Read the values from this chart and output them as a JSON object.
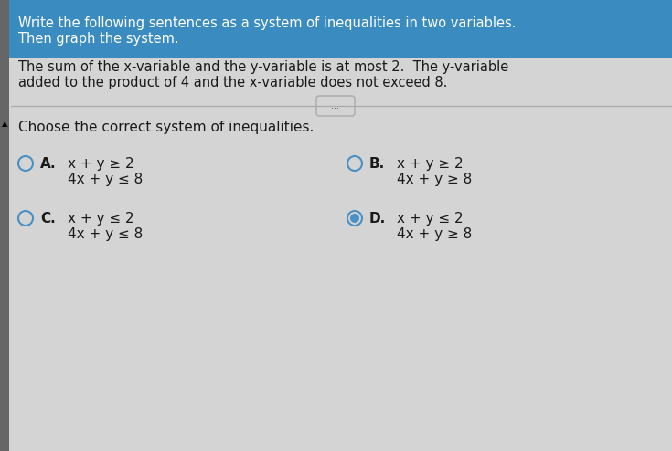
{
  "bg_top": "#3a8bbf",
  "bg_main": "#d4d4d4",
  "title_line1": "Write the following sentences as a system of inequalities in two variables.",
  "title_line2": "Then graph the system.",
  "body_line1": "The sum of the x-variable and the y-variable is at most 2.  The y-variable",
  "body_line2": "added to the product of 4 and the x-variable does not exceed 8.",
  "divider_label": "...",
  "choose_text": "Choose the correct system of inequalities.",
  "option_A_label": "A.",
  "option_A_line1": "x + y ≥ 2",
  "option_A_line2": "4x + y ≤ 8",
  "option_B_label": "B.",
  "option_B_line1": "x + y ≥ 2",
  "option_B_line2": "4x + y ≥ 8",
  "option_C_label": "C.",
  "option_C_line1": "x + y ≤ 2",
  "option_C_line2": "4x + y ≤ 8",
  "option_D_label": "D.",
  "option_D_line1": "x + y ≤ 2",
  "option_D_line2": "4x + y ≥ 8",
  "circle_color": "#4a90c4",
  "text_color": "#1a1a1a",
  "label_color": "#1a1a1a",
  "left_bar_color": "#666666",
  "top_bg": "#3a8bbf"
}
